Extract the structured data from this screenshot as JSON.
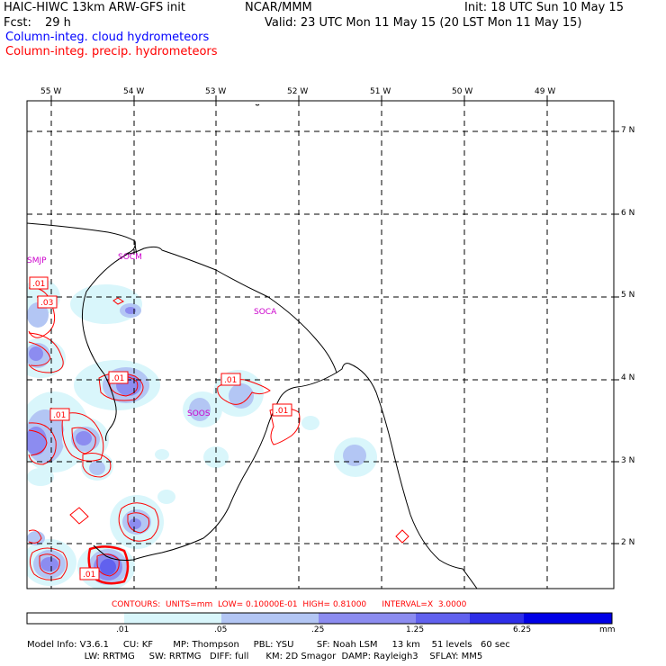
{
  "header": {
    "title_left": "HAIC-HIWC 13km ARW-GFS init",
    "title_mid": "NCAR/MMM",
    "init": "Init: 18 UTC Sun 10 May 15",
    "fcst_label": "Fcst:",
    "fcst_value": "29 h",
    "valid": "Valid: 23 UTC Mon 11 May 15 (20 LST Mon 11 May 15)",
    "field_cloud": "Column-integ. cloud hydrometeors",
    "field_precip": "Column-integ. precip. hydrometeors"
  },
  "map": {
    "lon_labels": [
      "55 W",
      "54 W",
      "53 W",
      "52 W",
      "51 W",
      "50 W",
      "49 W"
    ],
    "lat_labels": [
      "7 N",
      "6 N",
      "5 N",
      "4 N",
      "3 N",
      "2 N"
    ],
    "stations": [
      "SMJP",
      "SOCM",
      "SOCA",
      "SOOS"
    ],
    "contour_labels": [
      ".01",
      ".03",
      ".01",
      ".01",
      ".01",
      ".01",
      ".01"
    ]
  },
  "contours_text": "CONTOURS:  UNITS=mm  LOW= 0.10000E-01  HIGH= 0.81000      INTERVAL=X  3.0000",
  "colorbar": {
    "labels": [
      ".01",
      ".05",
      ".25",
      "1.25",
      "6.25"
    ],
    "units": "mm",
    "colors": [
      "#ffffff",
      "#d9f6fb",
      "#b3c6f4",
      "#8c8cf0",
      "#6161ee",
      "#2e2ee8",
      "#0000e6"
    ]
  },
  "model_info": {
    "line1": "Model Info: V3.6.1     CU: KF       MP: Thompson     PBL: YSU        SF: Noah LSM     13 km    51 levels   60 sec",
    "line2": "                    LW: RRTMG     SW: RRTMG   DIFF: full      KM: 2D Smagor  DAMP: Rayleigh3    SFLAY: MM5"
  }
}
